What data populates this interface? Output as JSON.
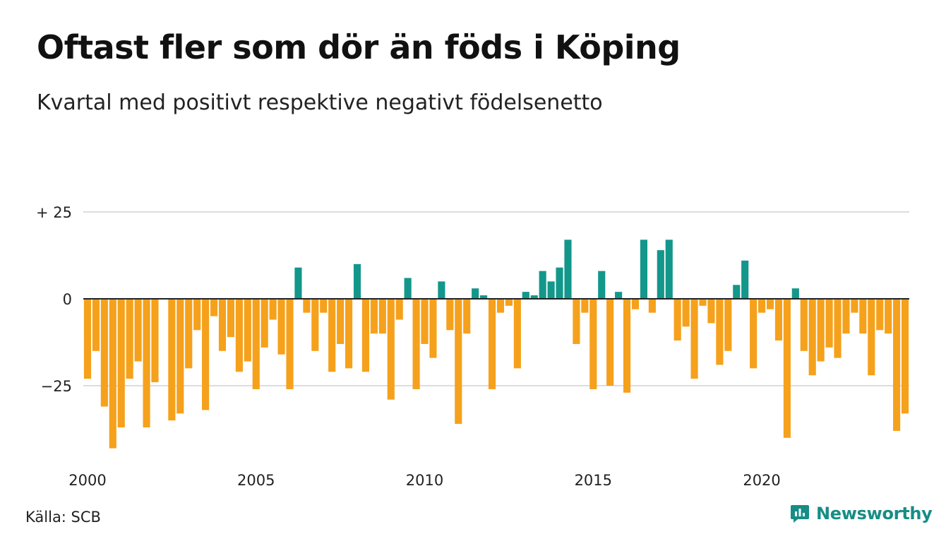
{
  "title": "Oftast fler som dör än föds i Köping",
  "subtitle": "Kvartal med positivt respektive negativt födelsenetto",
  "source": "Källa: SCB",
  "brand": {
    "name": "Newsworthy",
    "icon": "newsworthy-logo-icon"
  },
  "colors": {
    "positive": "#13978b",
    "negative": "#f5a11c",
    "grid": "#dddddd",
    "baseline": "#222222"
  },
  "chart_data": {
    "type": "bar",
    "x_axis": "quarters 2000–2024",
    "xticks": [
      {
        "label": "2000",
        "index": 0
      },
      {
        "label": "2005",
        "index": 20
      },
      {
        "label": "2010",
        "index": 40
      },
      {
        "label": "2015",
        "index": 60
      },
      {
        "label": "2020",
        "index": 80
      }
    ],
    "yticks": [
      {
        "label": "+ 25",
        "value": 25
      },
      {
        "label": "0",
        "value": 0
      },
      {
        "label": "−25",
        "value": -25
      }
    ],
    "ylim": [
      -45,
      25
    ],
    "grid": true,
    "values": [
      -23,
      -15,
      -31,
      -43,
      -37,
      -23,
      -18,
      -37,
      -24,
      0,
      -35,
      -33,
      -20,
      -9,
      -32,
      -5,
      -15,
      -11,
      -21,
      -18,
      -26,
      -14,
      -6,
      -16,
      -26,
      9,
      -4,
      -15,
      -4,
      -21,
      -13,
      -20,
      10,
      -21,
      -10,
      -10,
      -29,
      -6,
      6,
      -26,
      -13,
      -17,
      5,
      -9,
      -36,
      -10,
      3,
      1,
      -26,
      -4,
      -2,
      -20,
      2,
      1,
      8,
      5,
      9,
      17,
      -13,
      -4,
      -26,
      8,
      -25,
      2,
      -27,
      -3,
      17,
      -4,
      14,
      17,
      -12,
      -8,
      -23,
      -2,
      -7,
      -19,
      -15,
      4,
      11,
      -20,
      -4,
      -3,
      -12,
      -40,
      3,
      -15,
      -22,
      -18,
      -14,
      -17,
      -10,
      -4,
      -10,
      -22,
      -9,
      -10,
      -38,
      -33
    ]
  }
}
